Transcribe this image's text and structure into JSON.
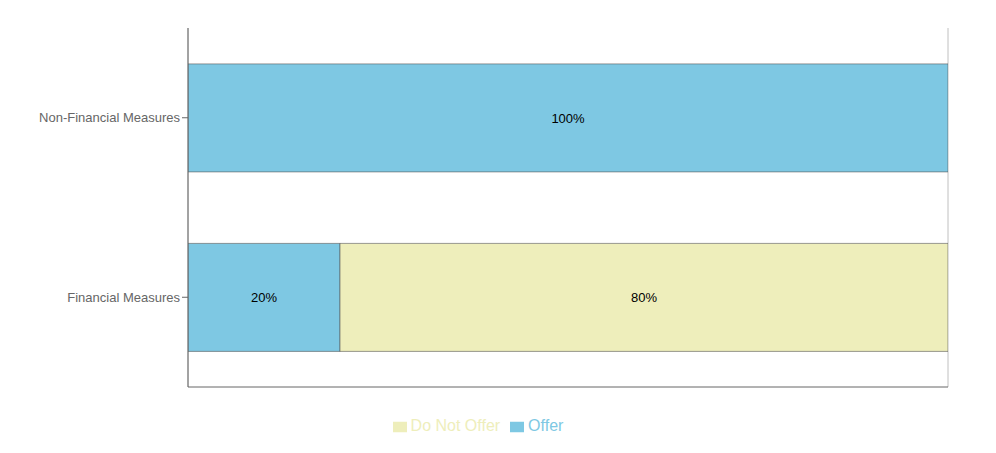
{
  "chart_data": {
    "type": "bar",
    "orientation": "horizontal",
    "stacked": true,
    "categories": [
      "Financial Measures",
      "Non-Financial Measures"
    ],
    "series": [
      {
        "name": "Offer",
        "color": "#7ec8e3",
        "values": [
          20,
          100
        ],
        "value_labels": [
          "20%",
          "100%"
        ]
      },
      {
        "name": "Do Not Offer",
        "color": "#eeeebb",
        "values": [
          80,
          0
        ],
        "value_labels": [
          "80%",
          null
        ]
      }
    ],
    "xlim": [
      0,
      100
    ],
    "xticks": [
      0,
      20,
      40,
      60,
      80,
      100
    ],
    "grid": true,
    "legend": "bottom",
    "data_labels": true,
    "tick_labels": "y"
  }
}
